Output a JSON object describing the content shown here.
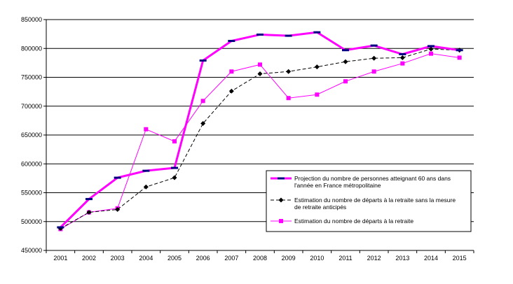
{
  "chart_data": {
    "type": "line",
    "x": [
      2001,
      2002,
      2003,
      2004,
      2005,
      2006,
      2007,
      2008,
      2009,
      2010,
      2011,
      2012,
      2013,
      2014,
      2015
    ],
    "ylim": [
      450000,
      850000
    ],
    "yticks": [
      "450000",
      "500000",
      "550000",
      "600000",
      "650000",
      "700000",
      "750000",
      "800000",
      "850000"
    ],
    "grid": true,
    "legend_position": "right",
    "series": [
      {
        "name": "Projection du nombre de personnes atteignant 60 ans dans l'année en France métropolitaine",
        "legend_lines": [
          "Projection du nombre de personnes atteignant 60 ans dans",
          "l'année en France métropolitaine"
        ],
        "color": "#ff00ff",
        "marker": "dash",
        "values": [
          490000,
          539000,
          576000,
          588000,
          593000,
          779000,
          813000,
          824000,
          822000,
          828000,
          797000,
          805000,
          790000,
          804000,
          797000
        ]
      },
      {
        "name": "Estimation du nombre de départs à la retraite sans la mesure de retraite anticipés",
        "legend_lines": [
          "Estimation du nombre de départs à la retraite sans la mesure",
          "de retraite anticipés"
        ],
        "color": "#000000",
        "marker": "diamond",
        "values": [
          488000,
          516000,
          521000,
          560000,
          576000,
          670000,
          726000,
          756000,
          760000,
          768000,
          777000,
          783000,
          784000,
          799000,
          797000
        ]
      },
      {
        "name": "Estimation du nombre de départs à la retraite",
        "legend_lines": [
          "Estimation du nombre de départs à la retraite"
        ],
        "color": "#ff00ff",
        "marker": "square",
        "values": [
          487000,
          516000,
          523000,
          660000,
          639000,
          709000,
          760000,
          772000,
          714000,
          720000,
          743000,
          760000,
          774000,
          791000,
          784000
        ]
      }
    ]
  }
}
